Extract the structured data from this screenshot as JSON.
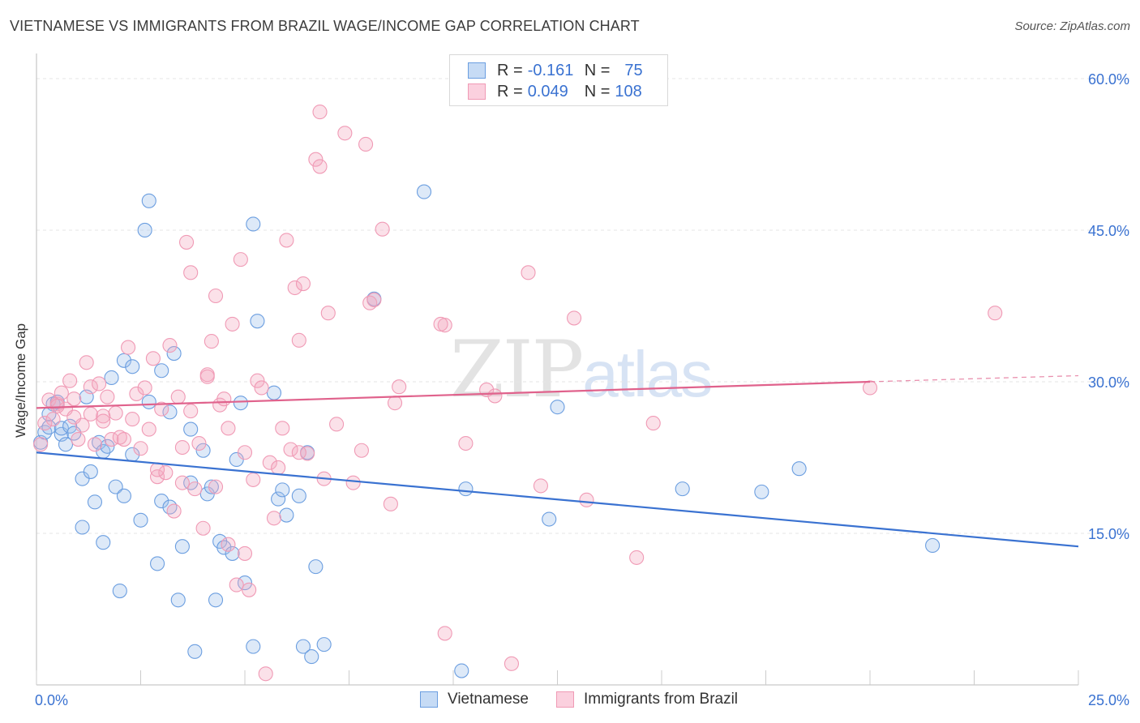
{
  "header": {
    "title": "VIETNAMESE VS IMMIGRANTS FROM BRAZIL WAGE/INCOME GAP CORRELATION CHART",
    "source": "Source: ZipAtlas.com"
  },
  "watermark": {
    "zip": "ZIP",
    "atlas": "atlas"
  },
  "legend": {
    "rows": [
      {
        "r_label": "R =",
        "r_value": "-0.161",
        "n_label": "N =",
        "n_value": "75",
        "color": "#9ebfea"
      },
      {
        "r_label": "R =",
        "r_value": "0.049",
        "n_label": "N =",
        "n_value": "108",
        "color": "#f4a9c0"
      }
    ]
  },
  "bottom_legend": [
    {
      "label": "Vietnamese",
      "color": "#9ebfea"
    },
    {
      "label": "Immigrants from Brazil",
      "color": "#f4a9c0"
    }
  ],
  "chart_data": {
    "type": "scatter",
    "ylabel": "Wage/Income Gap",
    "xlim": [
      0,
      25
    ],
    "ylim": [
      0,
      60
    ],
    "x_tick_labels": [
      {
        "value": 0,
        "label": "0.0%"
      },
      {
        "value": 25,
        "label": "25.0%"
      }
    ],
    "y_tick_labels": [
      {
        "value": 15,
        "label": "15.0%"
      },
      {
        "value": 30,
        "label": "30.0%"
      },
      {
        "value": 45,
        "label": "45.0%"
      },
      {
        "value": 60,
        "label": "60.0%"
      }
    ],
    "grid": true,
    "series": [
      {
        "name": "Vietnamese",
        "color": "#6b9ee0",
        "line_color": "#3a72d1",
        "trend": {
          "x": [
            0,
            25
          ],
          "y": [
            23.0,
            13.7
          ],
          "dashed_from": null
        },
        "points": [
          [
            0.1,
            24.0
          ],
          [
            0.2,
            25.0
          ],
          [
            0.3,
            25.5
          ],
          [
            0.4,
            27.8
          ],
          [
            0.5,
            28.0
          ],
          [
            0.6,
            24.8
          ],
          [
            0.6,
            25.4
          ],
          [
            0.7,
            23.8
          ],
          [
            0.8,
            25.6
          ],
          [
            0.9,
            24.9
          ],
          [
            1.1,
            15.6
          ],
          [
            1.1,
            20.4
          ],
          [
            1.2,
            28.5
          ],
          [
            1.3,
            21.1
          ],
          [
            1.4,
            18.1
          ],
          [
            1.5,
            24.0
          ],
          [
            1.6,
            23.1
          ],
          [
            1.6,
            14.1
          ],
          [
            1.7,
            23.6
          ],
          [
            1.8,
            30.4
          ],
          [
            1.9,
            19.6
          ],
          [
            2.0,
            9.3
          ],
          [
            2.1,
            32.1
          ],
          [
            2.1,
            18.7
          ],
          [
            2.3,
            31.5
          ],
          [
            2.3,
            22.8
          ],
          [
            2.5,
            16.3
          ],
          [
            2.6,
            45.0
          ],
          [
            2.7,
            28.0
          ],
          [
            2.7,
            47.9
          ],
          [
            2.9,
            12.0
          ],
          [
            3.0,
            31.1
          ],
          [
            3.0,
            18.2
          ],
          [
            3.2,
            27.0
          ],
          [
            3.2,
            17.6
          ],
          [
            3.3,
            32.8
          ],
          [
            3.4,
            8.4
          ],
          [
            3.5,
            13.7
          ],
          [
            3.7,
            20.0
          ],
          [
            3.7,
            25.3
          ],
          [
            3.8,
            3.3
          ],
          [
            4.0,
            23.2
          ],
          [
            4.1,
            18.9
          ],
          [
            4.2,
            19.6
          ],
          [
            4.3,
            8.4
          ],
          [
            4.4,
            14.2
          ],
          [
            4.5,
            13.6
          ],
          [
            4.7,
            13.0
          ],
          [
            4.8,
            22.3
          ],
          [
            4.9,
            27.9
          ],
          [
            5.0,
            10.1
          ],
          [
            5.2,
            3.8
          ],
          [
            5.2,
            45.6
          ],
          [
            5.3,
            36.0
          ],
          [
            5.7,
            28.9
          ],
          [
            5.8,
            18.4
          ],
          [
            5.9,
            19.3
          ],
          [
            6.0,
            16.8
          ],
          [
            6.3,
            18.7
          ],
          [
            6.4,
            3.8
          ],
          [
            6.5,
            23.0
          ],
          [
            6.6,
            2.8
          ],
          [
            6.7,
            11.7
          ],
          [
            6.9,
            4.0
          ],
          [
            8.1,
            38.2
          ],
          [
            9.3,
            48.8
          ],
          [
            10.2,
            1.4
          ],
          [
            10.3,
            19.4
          ],
          [
            12.3,
            16.4
          ],
          [
            12.5,
            27.5
          ],
          [
            15.5,
            19.4
          ],
          [
            17.4,
            19.1
          ],
          [
            18.3,
            21.4
          ],
          [
            21.5,
            13.8
          ],
          [
            0.3,
            26.8
          ]
        ]
      },
      {
        "name": "Immigrants from Brazil",
        "color": "#f09ab5",
        "line_color": "#e0628c",
        "trend": {
          "x": [
            0,
            20
          ],
          "y": [
            27.4,
            30.0
          ],
          "dashed_to": [
            25,
            30.6
          ]
        },
        "points": [
          [
            0.1,
            23.8
          ],
          [
            0.2,
            25.9
          ],
          [
            0.3,
            28.2
          ],
          [
            0.4,
            26.3
          ],
          [
            0.5,
            27.8
          ],
          [
            0.6,
            28.9
          ],
          [
            0.7,
            27.3
          ],
          [
            0.8,
            30.1
          ],
          [
            0.9,
            28.3
          ],
          [
            1.0,
            24.3
          ],
          [
            1.1,
            25.7
          ],
          [
            1.2,
            31.9
          ],
          [
            1.3,
            29.5
          ],
          [
            1.4,
            23.8
          ],
          [
            1.5,
            29.8
          ],
          [
            1.6,
            26.6
          ],
          [
            1.7,
            28.5
          ],
          [
            1.8,
            24.3
          ],
          [
            1.9,
            26.9
          ],
          [
            2.0,
            24.5
          ],
          [
            2.1,
            24.3
          ],
          [
            2.2,
            33.4
          ],
          [
            2.3,
            26.3
          ],
          [
            2.4,
            28.8
          ],
          [
            2.5,
            23.4
          ],
          [
            2.6,
            29.4
          ],
          [
            2.7,
            25.3
          ],
          [
            2.8,
            32.3
          ],
          [
            2.9,
            20.6
          ],
          [
            3.0,
            27.3
          ],
          [
            3.1,
            21.0
          ],
          [
            3.2,
            33.6
          ],
          [
            3.3,
            17.2
          ],
          [
            3.4,
            28.5
          ],
          [
            3.5,
            23.5
          ],
          [
            3.6,
            43.8
          ],
          [
            3.7,
            40.8
          ],
          [
            3.7,
            27.1
          ],
          [
            3.8,
            19.4
          ],
          [
            3.9,
            23.9
          ],
          [
            4.0,
            15.5
          ],
          [
            4.1,
            30.7
          ],
          [
            4.2,
            34.0
          ],
          [
            4.3,
            38.5
          ],
          [
            4.4,
            27.7
          ],
          [
            4.5,
            28.3
          ],
          [
            4.6,
            25.4
          ],
          [
            4.7,
            35.7
          ],
          [
            4.8,
            9.9
          ],
          [
            4.9,
            42.1
          ],
          [
            5.0,
            23.0
          ],
          [
            5.1,
            9.4
          ],
          [
            5.2,
            20.3
          ],
          [
            5.3,
            30.1
          ],
          [
            5.4,
            29.4
          ],
          [
            5.5,
            1.1
          ],
          [
            5.6,
            22.0
          ],
          [
            5.7,
            16.5
          ],
          [
            5.8,
            21.5
          ],
          [
            5.9,
            25.4
          ],
          [
            6.0,
            44.0
          ],
          [
            6.1,
            23.3
          ],
          [
            6.2,
            39.3
          ],
          [
            6.3,
            34.1
          ],
          [
            6.4,
            39.7
          ],
          [
            6.5,
            22.9
          ],
          [
            6.7,
            52.0
          ],
          [
            6.8,
            51.3
          ],
          [
            6.8,
            56.7
          ],
          [
            6.9,
            20.4
          ],
          [
            7.0,
            36.8
          ],
          [
            7.2,
            25.8
          ],
          [
            7.4,
            54.6
          ],
          [
            7.6,
            20.0
          ],
          [
            7.8,
            23.2
          ],
          [
            7.9,
            53.5
          ],
          [
            8.0,
            37.8
          ],
          [
            8.1,
            38.1
          ],
          [
            8.3,
            45.1
          ],
          [
            8.5,
            17.9
          ],
          [
            8.6,
            27.9
          ],
          [
            8.7,
            29.5
          ],
          [
            9.8,
            35.6
          ],
          [
            9.8,
            5.1
          ],
          [
            10.3,
            23.9
          ],
          [
            10.8,
            29.2
          ],
          [
            11.0,
            28.6
          ],
          [
            11.4,
            2.1
          ],
          [
            11.8,
            40.8
          ],
          [
            12.1,
            19.7
          ],
          [
            12.9,
            36.3
          ],
          [
            13.2,
            18.3
          ],
          [
            14.4,
            12.6
          ],
          [
            14.8,
            25.9
          ],
          [
            20.0,
            29.4
          ],
          [
            23.0,
            36.8
          ],
          [
            0.5,
            27.6
          ],
          [
            1.6,
            26.1
          ],
          [
            2.9,
            21.3
          ],
          [
            4.1,
            30.5
          ],
          [
            5.0,
            13.0
          ],
          [
            6.3,
            23.0
          ],
          [
            9.7,
            35.7
          ],
          [
            3.5,
            20.0
          ],
          [
            4.6,
            13.9
          ],
          [
            0.9,
            26.5
          ],
          [
            1.3,
            26.8
          ],
          [
            4.3,
            19.6
          ]
        ]
      }
    ]
  }
}
